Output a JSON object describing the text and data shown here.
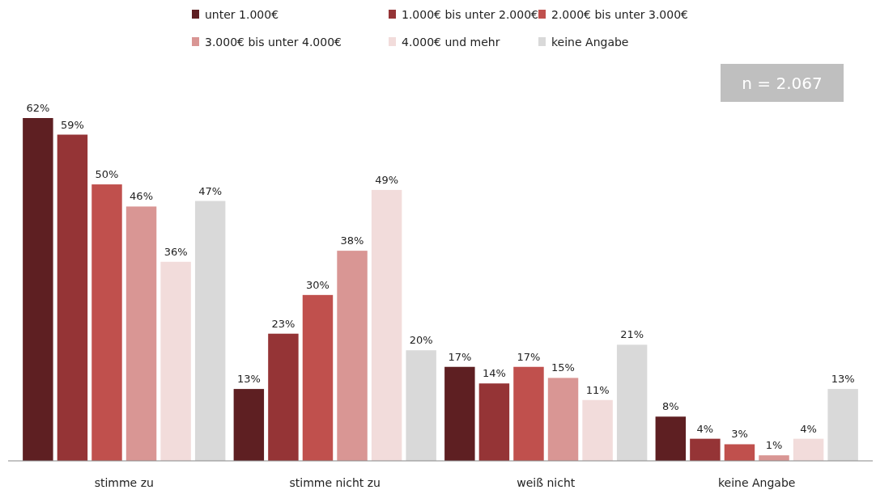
{
  "chart_data": {
    "type": "bar",
    "categories": [
      "stimme zu",
      "stimme nicht zu",
      "weiß nicht",
      "keine Angabe"
    ],
    "series": [
      {
        "name": "unter 1.000€",
        "color": "#5e1f22",
        "values": [
          62,
          13,
          17,
          8
        ],
        "value_labels": [
          "62%",
          "13%",
          "17%",
          "8%"
        ]
      },
      {
        "name": "1.000€ bis unter 2.000€",
        "color": "#953436",
        "values": [
          59,
          23,
          14,
          4
        ],
        "value_labels": [
          "59%",
          "23%",
          "14%",
          "4%"
        ]
      },
      {
        "name": "2.000€ bis unter 3.000€",
        "color": "#c0504d",
        "values": [
          50,
          30,
          17,
          3
        ],
        "value_labels": [
          "50%",
          "30%",
          "17%",
          "3%"
        ]
      },
      {
        "name": "3.000€ bis unter 4.000€",
        "color": "#d99694",
        "values": [
          46,
          38,
          15,
          1
        ],
        "value_labels": [
          "46%",
          "38%",
          "15%",
          "1%"
        ]
      },
      {
        "name": "4.000€ und mehr",
        "color": "#f2dcdb",
        "values": [
          36,
          49,
          11,
          4
        ],
        "value_labels": [
          "36%",
          "49%",
          "11%",
          "4%"
        ]
      },
      {
        "name": "keine Angabe",
        "color": "#d9d9d9",
        "values": [
          47,
          20,
          21,
          13
        ],
        "value_labels": [
          "47%",
          "20%",
          "21%",
          "13%"
        ]
      }
    ],
    "legend": "top",
    "annotations": [
      "n = 2.067"
    ]
  }
}
